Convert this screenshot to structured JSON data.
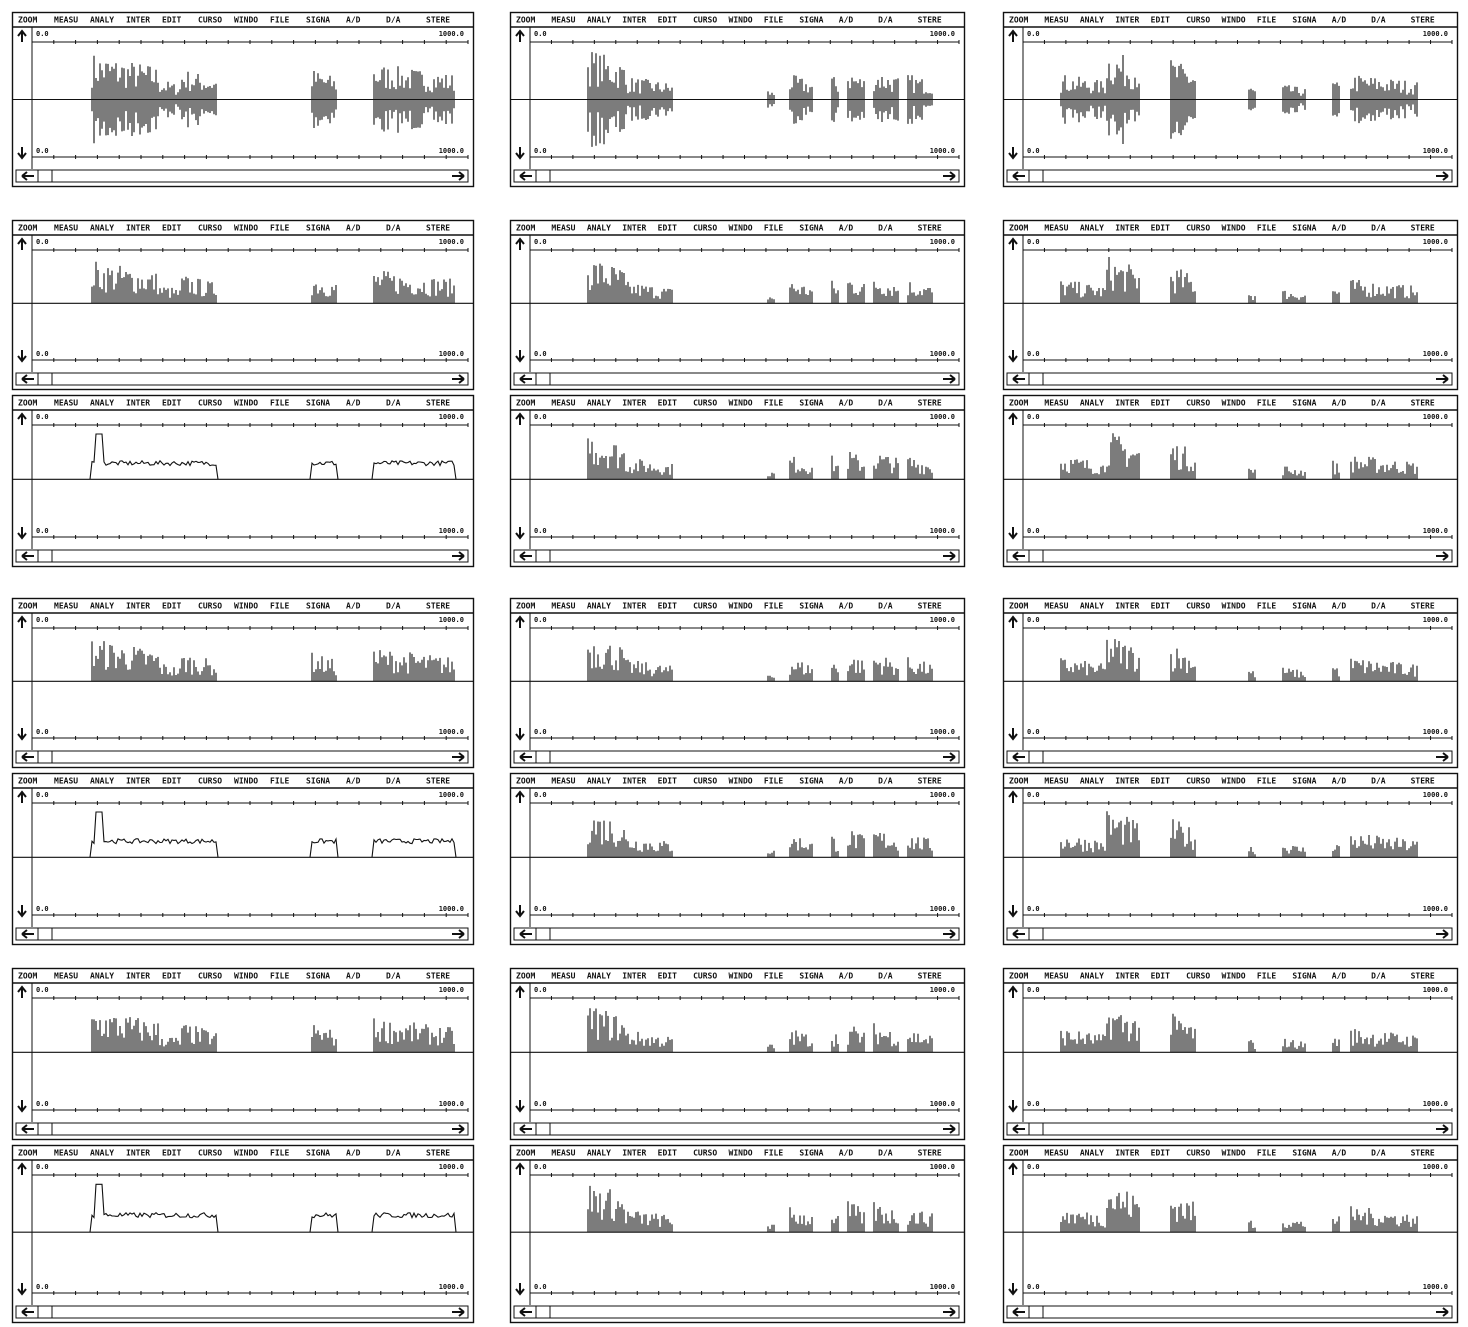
{
  "menu": [
    "ZOOM",
    "MEASU",
    "ANALY",
    "INTER",
    "EDIT",
    "CURSO",
    "WINDO",
    "FILE",
    "SIGNA",
    "A/D",
    "D/A",
    "STERE"
  ],
  "scale_labels": {
    "top_left": "0.0",
    "top_right": "1000.0",
    "bottom_left": "0.0",
    "bottom_right": "1000.0"
  }
}
